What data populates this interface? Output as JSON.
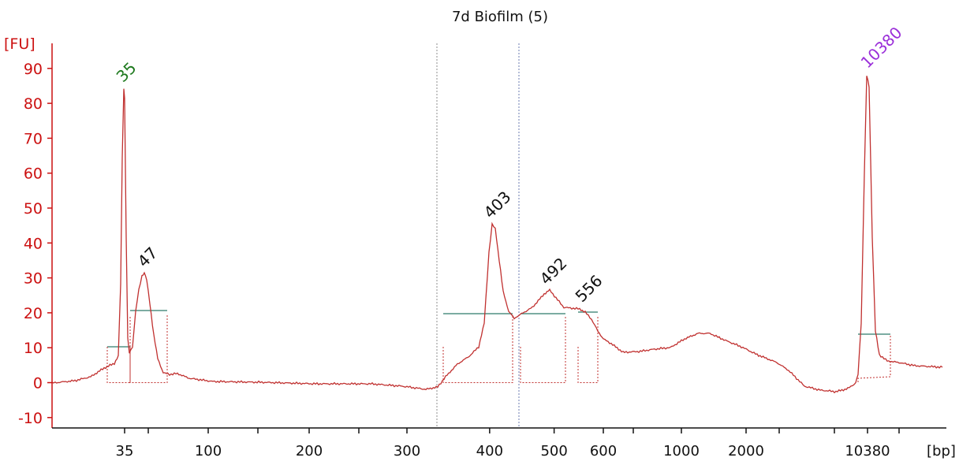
{
  "chart_data": {
    "type": "line",
    "title": "7d Biofilm (5)",
    "ylabel": "[FU]",
    "xlabel": "[bp]",
    "ylim": [
      -12,
      95
    ],
    "y_ticks": [
      -10,
      0,
      10,
      20,
      30,
      40,
      50,
      60,
      70,
      80,
      90
    ],
    "x_tick_labels": [
      "35",
      "100",
      "200",
      "300",
      "400",
      "500",
      "600",
      "1000",
      "2000",
      "10380"
    ],
    "grid": false,
    "colors": {
      "trace": "#c0302f",
      "y_axis": "#cc1111",
      "baseline": "#2f7a6b",
      "marker_line_1": "#8c8c8c",
      "marker_line_2": "#6b7bb0",
      "peak_lower_marker": "#1f7a1f",
      "peak_upper_marker": "#9b30d9",
      "peak_default": "#111111"
    },
    "peaks": [
      {
        "label": "35",
        "bp": 35,
        "fu": 84,
        "kind": "lower_marker"
      },
      {
        "label": "47",
        "bp": 47,
        "fu": 31,
        "kind": "default"
      },
      {
        "label": "403",
        "bp": 403,
        "fu": 45,
        "kind": "default"
      },
      {
        "label": "492",
        "bp": 492,
        "fu": 26,
        "kind": "default"
      },
      {
        "label": "556",
        "bp": 556,
        "fu": 21,
        "kind": "default"
      },
      {
        "label": "10380",
        "bp": 10380,
        "fu": 88,
        "kind": "upper_marker"
      }
    ]
  }
}
